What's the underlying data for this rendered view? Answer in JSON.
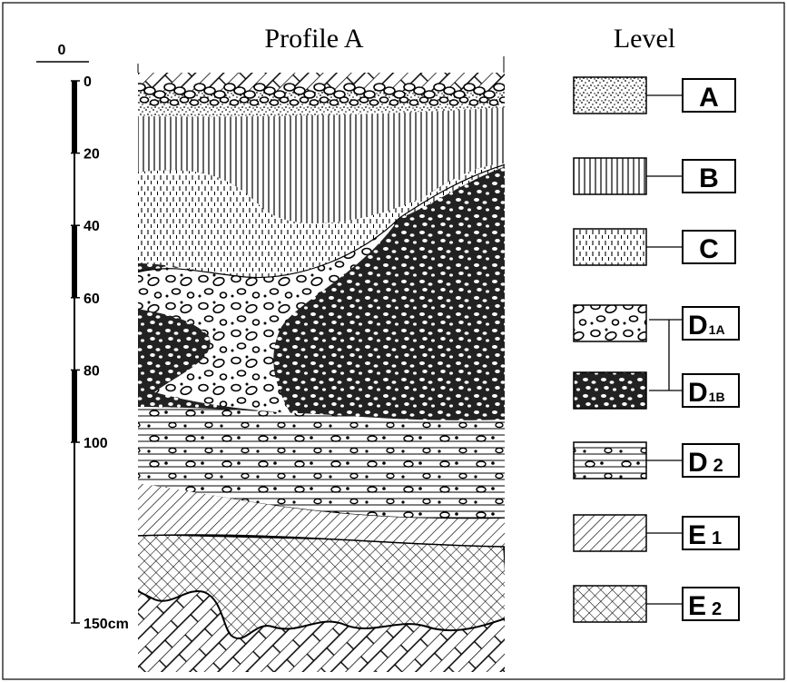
{
  "title": "Profile A",
  "legend_title": "Level",
  "scale": {
    "top_label": "0",
    "ticks": [
      0,
      20,
      40,
      60,
      80,
      100,
      {
        "value": 150,
        "label": "150cm"
      }
    ]
  },
  "levels": [
    {
      "letter": "A",
      "sub": null
    },
    {
      "letter": "B",
      "sub": null
    },
    {
      "letter": "C",
      "sub": null
    },
    {
      "letter": "D",
      "sub": "1A"
    },
    {
      "letter": "D",
      "sub": "1B"
    },
    {
      "letter": "D",
      "sub": "2"
    },
    {
      "letter": "E",
      "sub": "1"
    },
    {
      "letter": "E",
      "sub": "2"
    }
  ]
}
